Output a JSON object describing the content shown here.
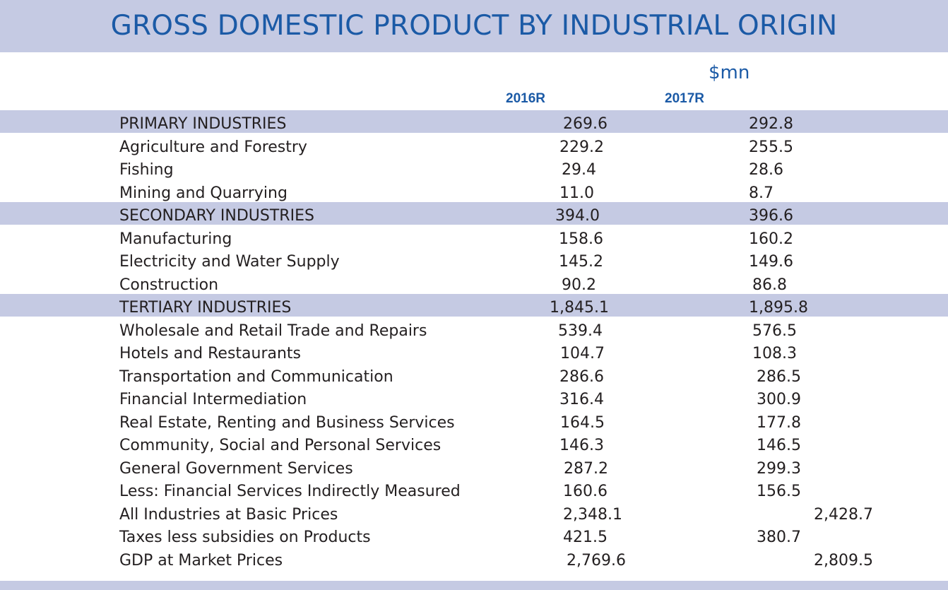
{
  "title": "GROSS DOMESTIC PRODUCT BY INDUSTRIAL ORIGIN",
  "unit": "$mn",
  "columns": [
    "2016R",
    "2017R"
  ],
  "colors": {
    "band": "#c5cae3",
    "heading": "#1b5aa6",
    "text": "#231f20"
  },
  "rows": [
    {
      "label": "PRIMARY INDUSTRIES",
      "v2016": "269.6",
      "v2017": "292.8",
      "shaded": true
    },
    {
      "label": "Agriculture and Forestry",
      "v2016": "229.2",
      "v2017": "255.5",
      "shaded": false
    },
    {
      "label": "Fishing",
      "v2016": "29.4",
      "v2017": "28.6",
      "shaded": false
    },
    {
      "label": "Mining and Quarrying",
      "v2016": "11.0",
      "v2017": "8.7",
      "shaded": false
    },
    {
      "label": "SECONDARY INDUSTRIES",
      "v2016": "394.0",
      "v2017": "396.6",
      "shaded": true
    },
    {
      "label": "Manufacturing",
      "v2016": "158.6",
      "v2017": "160.2",
      "shaded": false
    },
    {
      "label": "Electricity and Water Supply",
      "v2016": "145.2",
      "v2017": "149.6",
      "shaded": false
    },
    {
      "label": "Construction",
      "v2016": "90.2",
      "v2017": "86.8",
      "shaded": false
    },
    {
      "label": "TERTIARY INDUSTRIES",
      "v2016": "1,845.1",
      "v2017": "1,895.8",
      "shaded": true
    },
    {
      "label": "Wholesale and Retail Trade and Repairs",
      "v2016": "539.4",
      "v2017": "576.5",
      "shaded": false
    },
    {
      "label": "Hotels and Restaurants",
      "v2016": "104.7",
      "v2017": "108.3",
      "shaded": false
    },
    {
      "label": "Transportation and Communication",
      "v2016": "286.6",
      "v2017": "286.5",
      "shaded": false
    },
    {
      "label": "Financial Intermediation",
      "v2016": "316.4",
      "v2017": "300.9",
      "shaded": false
    },
    {
      "label": "Real Estate, Renting and Business Services",
      "v2016": "164.5",
      "v2017": "177.8",
      "shaded": false
    },
    {
      "label": "Community, Social and Personal Services",
      "v2016": "146.3",
      "v2017": "146.5",
      "shaded": false
    },
    {
      "label": "General Government Services",
      "v2016": "287.2",
      "v2017": "299.3",
      "shaded": false
    },
    {
      "label": "Less: Financial Services Indirectly Measured",
      "v2016": "160.6",
      "v2017": "156.5",
      "shaded": false
    },
    {
      "label": "All Industries at Basic Prices",
      "v2016": "2,348.1",
      "v2017": "2,428.7",
      "shaded": false
    },
    {
      "label": "Taxes less subsidies on Products",
      "v2016": "421.5",
      "v2017": "380.7",
      "shaded": false
    },
    {
      "label": "GDP at Market Prices",
      "v2016": "2,769.6",
      "v2017": "2,809.5",
      "shaded": false
    }
  ]
}
